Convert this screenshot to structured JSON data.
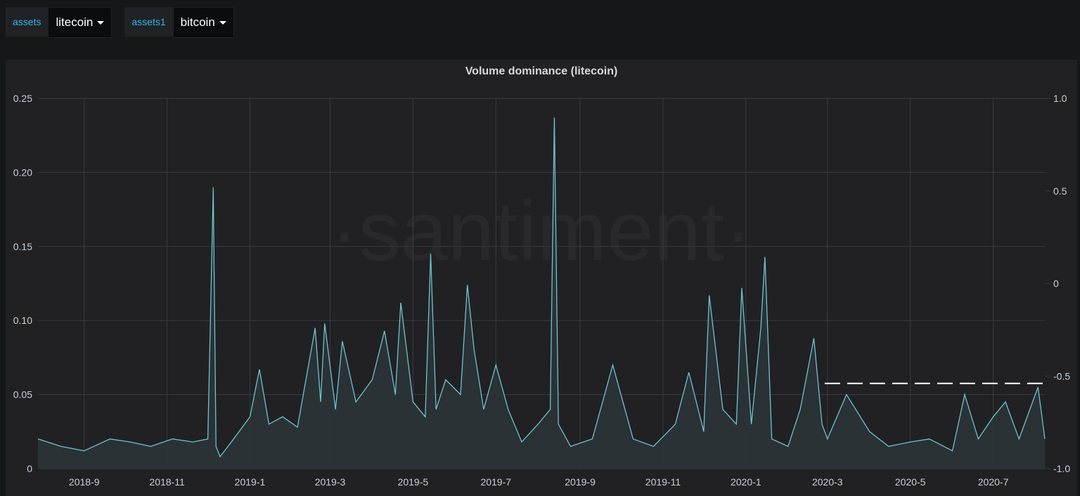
{
  "variables": [
    {
      "label": "assets",
      "value": "litecoin"
    },
    {
      "label": "assets1",
      "value": "bitcoin"
    }
  ],
  "watermark": "·santiment·",
  "colors": {
    "line": "#6fc2cf",
    "fill": "#2b3438",
    "grid": "#3a3b3e",
    "threshold": "#ffffff"
  },
  "chart_data": {
    "type": "area",
    "title": "Volume dominance (litecoin)",
    "xlabel": "",
    "ylabel": "",
    "x_ticks": [
      "2018-9",
      "2018-11",
      "2019-1",
      "2019-3",
      "2019-5",
      "2019-7",
      "2019-9",
      "2019-11",
      "2020-1",
      "2020-3",
      "2020-5",
      "2020-7"
    ],
    "x_range": [
      "2018-07-29",
      "2020-08-08"
    ],
    "ylim": [
      0,
      0.25
    ],
    "y_ticks": [
      "0",
      "0.05",
      "0.10",
      "0.15",
      "0.20",
      "0.25"
    ],
    "y2lim": [
      -1.0,
      1.0
    ],
    "y2_ticks": [
      "-1.0",
      "-0.5",
      "0",
      "0.5",
      "1.0"
    ],
    "grid": true,
    "threshold": {
      "axis": "right",
      "value": -0.54,
      "from": "2020-02-28",
      "style": "dashed"
    },
    "series": [
      {
        "x": [
          "2018-07-29",
          "2018-08-15",
          "2018-09-01",
          "2018-09-20",
          "2018-10-05",
          "2018-10-20",
          "2018-11-05",
          "2018-11-20",
          "2018-12-01",
          "2018-12-05",
          "2018-12-07",
          "2018-12-10",
          "2018-12-20",
          "2019-01-01",
          "2019-01-08",
          "2019-01-15",
          "2019-01-25",
          "2019-02-05",
          "2019-02-18",
          "2019-02-22",
          "2019-02-25",
          "2019-03-05",
          "2019-03-10",
          "2019-03-20",
          "2019-04-01",
          "2019-04-10",
          "2019-04-18",
          "2019-04-22",
          "2019-05-01",
          "2019-05-10",
          "2019-05-14",
          "2019-05-18",
          "2019-05-25",
          "2019-06-05",
          "2019-06-10",
          "2019-06-15",
          "2019-06-22",
          "2019-07-01",
          "2019-07-10",
          "2019-07-20",
          "2019-08-01",
          "2019-08-10",
          "2019-08-13",
          "2019-08-16",
          "2019-08-25",
          "2019-09-10",
          "2019-09-25",
          "2019-10-10",
          "2019-10-25",
          "2019-11-10",
          "2019-11-20",
          "2019-12-01",
          "2019-12-05",
          "2019-12-15",
          "2019-12-25",
          "2019-12-29",
          "2020-01-05",
          "2020-01-12",
          "2020-01-15",
          "2020-01-20",
          "2020-02-01",
          "2020-02-10",
          "2020-02-20",
          "2020-02-26",
          "2020-03-01",
          "2020-03-15",
          "2020-04-01",
          "2020-04-15",
          "2020-05-01",
          "2020-05-15",
          "2020-06-01",
          "2020-06-10",
          "2020-06-20",
          "2020-07-01",
          "2020-07-10",
          "2020-07-20",
          "2020-07-30",
          "2020-08-03",
          "2020-08-08"
        ],
        "values": [
          0.02,
          0.015,
          0.012,
          0.02,
          0.018,
          0.015,
          0.02,
          0.018,
          0.02,
          0.19,
          0.015,
          0.008,
          0.02,
          0.035,
          0.067,
          0.03,
          0.035,
          0.028,
          0.095,
          0.045,
          0.098,
          0.04,
          0.086,
          0.045,
          0.06,
          0.093,
          0.05,
          0.112,
          0.045,
          0.035,
          0.145,
          0.04,
          0.06,
          0.05,
          0.124,
          0.08,
          0.04,
          0.07,
          0.04,
          0.018,
          0.03,
          0.04,
          0.237,
          0.03,
          0.015,
          0.02,
          0.07,
          0.02,
          0.015,
          0.03,
          0.065,
          0.025,
          0.117,
          0.04,
          0.03,
          0.122,
          0.03,
          0.095,
          0.143,
          0.02,
          0.015,
          0.04,
          0.088,
          0.03,
          0.02,
          0.05,
          0.025,
          0.015,
          0.018,
          0.02,
          0.012,
          0.05,
          0.02,
          0.035,
          0.045,
          0.02,
          0.045,
          0.055,
          0.02
        ]
      }
    ]
  }
}
